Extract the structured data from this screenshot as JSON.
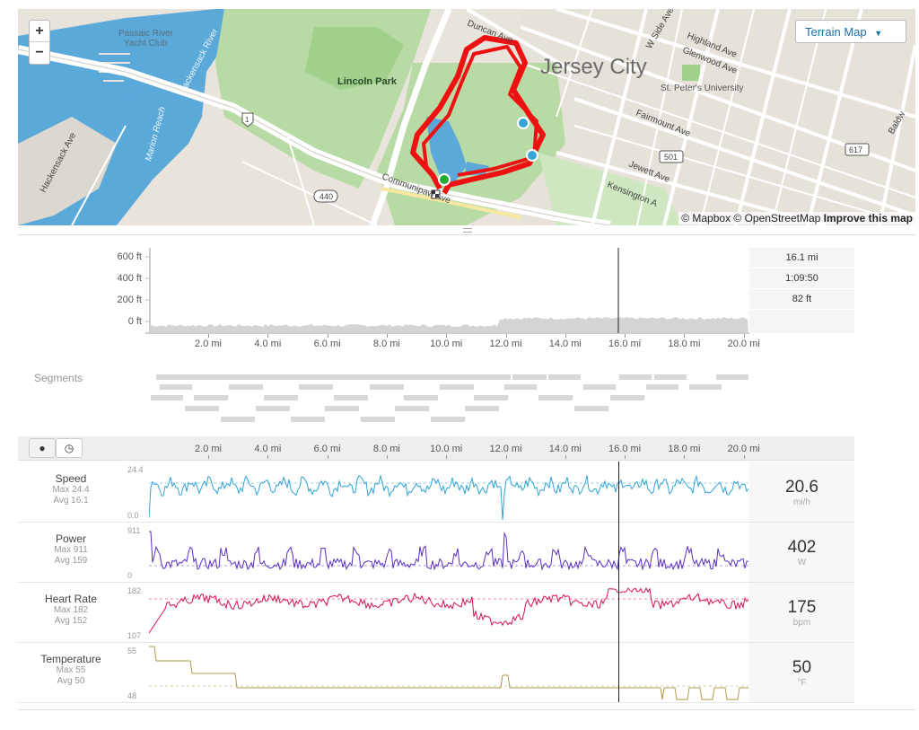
{
  "map": {
    "zoom_in": "+",
    "zoom_out": "−",
    "terrain_button": "Terrain Map",
    "attribution_prefix": "© Mapbox © OpenStreetMap",
    "attribution_link": "Improve this map",
    "labels": {
      "passaic": "Passaic River",
      "yacht": "Yacht Club",
      "hackensack_river": "Hackensack River",
      "marion": "Marion Reach",
      "hackensack_ave": "Hackensack Ave",
      "lincoln_park": "Lincoln Park",
      "us1": "1",
      "r440": "440",
      "r501": "501",
      "r617": "617",
      "jersey_city": "Jersey City",
      "duncan": "Duncan Ave",
      "w_side": "W Side Ave",
      "highland": "Highland Ave",
      "glenwood": "Glenwood Ave",
      "st_peters": "St. Peter's University",
      "fairmount": "Fairmount Ave",
      "jewett": "Jewett Ave",
      "kensington": "Kensington A",
      "communipaw": "Communipaw Ave",
      "baldwin": "Baldw"
    }
  },
  "elevation": {
    "y_ticks": [
      "600 ft",
      "400 ft",
      "200 ft",
      "0 ft"
    ],
    "x_ticks": [
      "2.0 mi",
      "4.0 mi",
      "6.0 mi",
      "8.0 mi",
      "10.0 mi",
      "12.0 mi",
      "14.0 mi",
      "16.0 mi",
      "18.0 mi",
      "20.0 mi"
    ],
    "stats": [
      "16.1 mi",
      "1:09:50",
      "82 ft"
    ]
  },
  "segments": {
    "label": "Segments"
  },
  "toolbar": {
    "pin_icon": "map-pin-icon",
    "clock_icon": "clock-icon"
  },
  "streams": [
    {
      "key": "speed",
      "title": "Speed",
      "max": "Max 24.4",
      "avg": "Avg 16.1",
      "ymax": "24.4",
      "ymin": "0.0",
      "value": "20.6",
      "unit": "mi/h",
      "color": "#2fa4d6"
    },
    {
      "key": "power",
      "title": "Power",
      "max": "Max 911",
      "avg": "Avg 159",
      "ymax": "911",
      "ymin": "0",
      "value": "402",
      "unit": "W",
      "color": "#5b2fc4"
    },
    {
      "key": "hr",
      "title": "Heart Rate",
      "max": "Max 182",
      "avg": "Avg 152",
      "ymax": "182",
      "ymin": "107",
      "value": "175",
      "unit": "bpm",
      "color": "#d8124f"
    },
    {
      "key": "temp",
      "title": "Temperature",
      "max": "Max 55",
      "avg": "Avg 50",
      "ymax": "55",
      "ymin": "48",
      "value": "50",
      "unit": "°F",
      "color": "#b09a48"
    }
  ]
}
